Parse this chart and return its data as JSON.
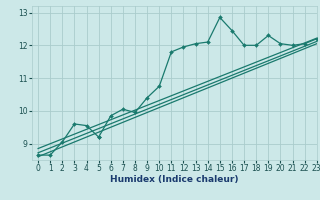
{
  "title": "",
  "xlabel": "Humidex (Indice chaleur)",
  "xlim": [
    -0.5,
    23
  ],
  "ylim": [
    8.5,
    13.2
  ],
  "yticks": [
    9,
    10,
    11,
    12,
    13
  ],
  "xticks": [
    0,
    1,
    2,
    3,
    4,
    5,
    6,
    7,
    8,
    9,
    10,
    11,
    12,
    13,
    14,
    15,
    16,
    17,
    18,
    19,
    20,
    21,
    22,
    23
  ],
  "bg_color": "#cce8e8",
  "grid_color": "#aacccc",
  "line_color": "#1a7a6e",
  "line1_x": [
    0,
    1,
    2,
    3,
    4,
    5,
    5,
    6,
    7,
    8,
    9,
    10,
    11,
    12,
    13,
    14,
    15,
    16,
    17,
    18,
    19,
    20,
    21,
    22,
    23
  ],
  "line1_y": [
    8.65,
    8.65,
    9.05,
    9.6,
    9.55,
    9.2,
    9.2,
    9.85,
    10.05,
    9.95,
    10.4,
    10.75,
    11.8,
    11.95,
    12.05,
    12.1,
    12.85,
    12.45,
    12.0,
    12.0,
    12.3,
    12.05,
    12.0,
    12.05,
    12.2
  ],
  "line2_x": [
    0,
    23
  ],
  "line2_y": [
    8.72,
    12.12
  ],
  "line3_x": [
    0,
    23
  ],
  "line3_y": [
    8.85,
    12.22
  ],
  "line4_x": [
    0,
    23
  ],
  "line4_y": [
    8.6,
    12.05
  ]
}
